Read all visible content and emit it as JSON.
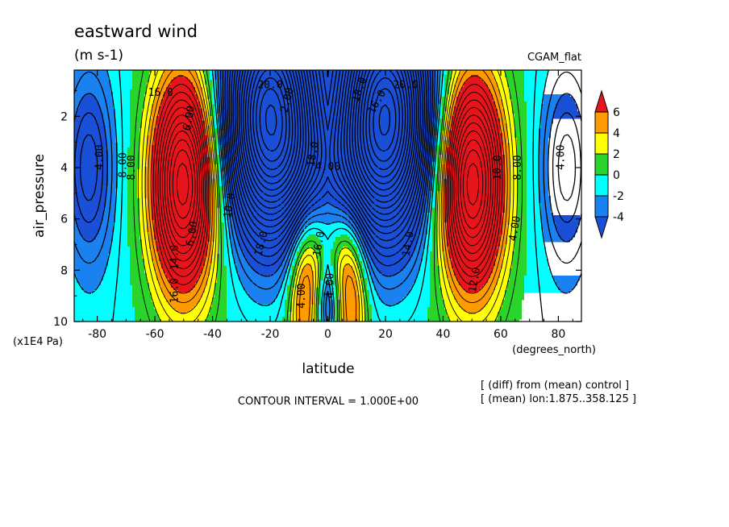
{
  "chart_data": {
    "type": "heatmap",
    "title": "eastward wind",
    "units": "(m s-1)",
    "experiment": "CGAM_flat",
    "xlabel": "latitude",
    "x_units": "(degrees_north)",
    "ylabel": "air_pressure",
    "y_units": "(x1E4 Pa)",
    "xlim": [
      -88,
      88
    ],
    "ylim": [
      0.2,
      10
    ],
    "y_inverted": true,
    "x_ticks": [
      -80,
      -60,
      -40,
      -20,
      0,
      20,
      40,
      60,
      80
    ],
    "x_tick_labels": [
      "-80",
      "-60",
      "-40",
      "-20",
      "0",
      "20",
      "40",
      "60",
      "80"
    ],
    "y_ticks": [
      2,
      4,
      6,
      8,
      10
    ],
    "y_tick_labels": [
      "2",
      "4",
      "6",
      "8",
      "10"
    ],
    "colorbar": {
      "levels": [
        6,
        4,
        2,
        0,
        -2,
        -4
      ],
      "labels": [
        "6",
        "4",
        "2",
        "0",
        "-2",
        "-4"
      ],
      "colors": [
        "#e8141c",
        "#ff9b00",
        "#ffff00",
        "#2bd42b",
        "#00ffff",
        "#1a82f0",
        "#1a4fd8"
      ]
    },
    "contour_interval": "CONTOUR INTERVAL = 1.000E+00",
    "notes": [
      "[ (diff) from (mean) control ]",
      "[ (mean) lon:1.875..358.125 ]"
    ],
    "contour_labels": [
      "20.0",
      "20.0",
      "16.0",
      "16.0",
      "4.00",
      "4.00",
      "2.00",
      "18.0",
      "14.0",
      "14.0",
      "16.0",
      "16.0",
      "8.00",
      "6.00",
      "10.0",
      "12.0",
      "10.0",
      "8.00",
      "8.00",
      "6.00",
      "4.00",
      "18.0",
      "18.0",
      "4.00",
      "4.00",
      "4.00"
    ]
  }
}
